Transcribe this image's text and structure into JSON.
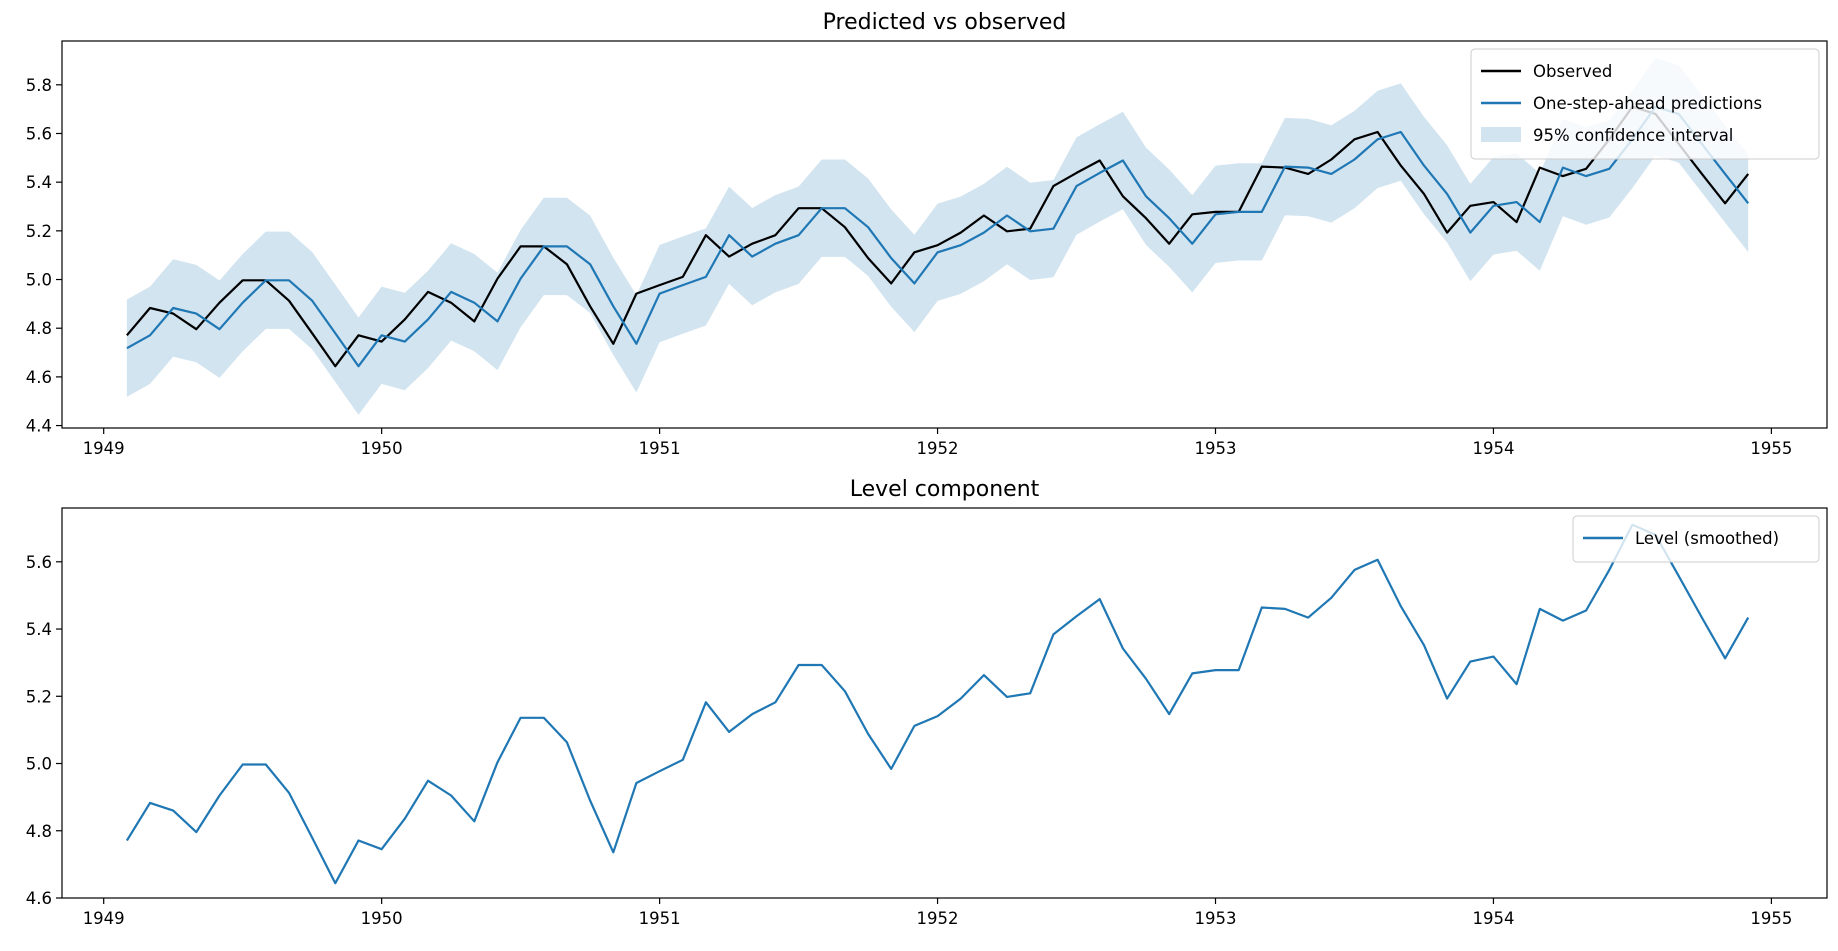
{
  "chart_data": [
    {
      "type": "line",
      "title": "Predicted vs observed",
      "xlabel": "",
      "ylabel": "",
      "xlim": [
        1948.85,
        1955.2
      ],
      "ylim": [
        4.39,
        5.98
      ],
      "x_ticks": [
        1949,
        1950,
        1951,
        1952,
        1953,
        1954,
        1955
      ],
      "y_ticks": [
        4.4,
        4.6,
        4.8,
        5.0,
        5.2,
        5.4,
        5.6,
        5.8
      ],
      "grid": false,
      "legend_position": "top-right",
      "x_start_year": 1949,
      "x_start_month": 2,
      "series": [
        {
          "name": "Observed",
          "color": "#000000",
          "values": [
            4.771,
            4.883,
            4.86,
            4.796,
            4.905,
            4.997,
            4.997,
            4.913,
            4.779,
            4.644,
            4.771,
            4.745,
            4.836,
            4.949,
            4.905,
            4.828,
            5.004,
            5.136,
            5.136,
            5.063,
            4.89,
            4.736,
            4.942,
            4.977,
            5.011,
            5.182,
            5.094,
            5.147,
            5.182,
            5.293,
            5.293,
            5.215,
            5.088,
            4.984,
            5.112,
            5.141,
            5.193,
            5.263,
            5.198,
            5.209,
            5.384,
            5.438,
            5.489,
            5.342,
            5.252,
            5.147,
            5.268,
            5.278,
            5.278,
            5.464,
            5.46,
            5.434,
            5.493,
            5.576,
            5.606,
            5.468,
            5.352,
            5.193,
            5.303,
            5.318,
            5.236,
            5.46,
            5.425,
            5.455,
            5.576,
            5.71,
            5.68,
            5.557,
            5.434,
            5.313,
            5.434
          ]
        },
        {
          "name": "One-step-ahead predictions",
          "color": "#1f77b4",
          "values": [
            4.718,
            4.771,
            4.883,
            4.86,
            4.796,
            4.905,
            4.997,
            4.997,
            4.913,
            4.779,
            4.644,
            4.771,
            4.745,
            4.836,
            4.949,
            4.905,
            4.828,
            5.004,
            5.136,
            5.136,
            5.063,
            4.89,
            4.736,
            4.942,
            4.977,
            5.011,
            5.182,
            5.094,
            5.147,
            5.182,
            5.293,
            5.293,
            5.215,
            5.088,
            4.984,
            5.112,
            5.141,
            5.193,
            5.263,
            5.198,
            5.209,
            5.384,
            5.438,
            5.489,
            5.342,
            5.252,
            5.147,
            5.268,
            5.278,
            5.278,
            5.464,
            5.46,
            5.434,
            5.493,
            5.576,
            5.606,
            5.468,
            5.352,
            5.193,
            5.303,
            5.318,
            5.236,
            5.46,
            5.425,
            5.455,
            5.576,
            5.71,
            5.68,
            5.557,
            5.434,
            5.313
          ]
        }
      ],
      "band": {
        "name": "95% confidence interval",
        "color": "#1f77b4",
        "opacity": 0.2,
        "half_width": 0.2
      }
    },
    {
      "type": "line",
      "title": "Level component",
      "xlabel": "",
      "ylabel": "",
      "xlim": [
        1948.85,
        1955.2
      ],
      "ylim": [
        4.6,
        5.76
      ],
      "x_ticks": [
        1949,
        1950,
        1951,
        1952,
        1953,
        1954,
        1955
      ],
      "y_ticks": [
        4.6,
        4.8,
        5.0,
        5.2,
        5.4,
        5.6
      ],
      "grid": false,
      "legend_position": "top-right",
      "x_start_year": 1949,
      "x_start_month": 2,
      "series": [
        {
          "name": "Level (smoothed)",
          "color": "#1f77b4",
          "values": [
            4.771,
            4.883,
            4.86,
            4.796,
            4.905,
            4.997,
            4.997,
            4.913,
            4.779,
            4.644,
            4.771,
            4.745,
            4.836,
            4.949,
            4.905,
            4.828,
            5.004,
            5.136,
            5.136,
            5.063,
            4.89,
            4.736,
            4.942,
            4.977,
            5.011,
            5.182,
            5.094,
            5.147,
            5.182,
            5.293,
            5.293,
            5.215,
            5.088,
            4.984,
            5.112,
            5.141,
            5.193,
            5.263,
            5.198,
            5.209,
            5.384,
            5.438,
            5.489,
            5.342,
            5.252,
            5.147,
            5.268,
            5.278,
            5.278,
            5.464,
            5.46,
            5.434,
            5.493,
            5.576,
            5.606,
            5.468,
            5.352,
            5.193,
            5.303,
            5.318,
            5.236,
            5.46,
            5.425,
            5.455,
            5.576,
            5.71,
            5.68,
            5.557,
            5.434,
            5.313,
            5.434
          ]
        }
      ]
    }
  ]
}
